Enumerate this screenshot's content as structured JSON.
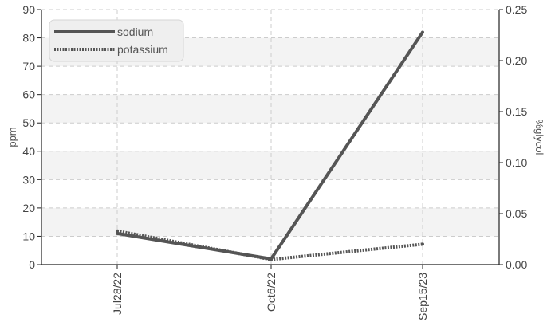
{
  "chart_data": {
    "type": "line",
    "categories": [
      "Jul28/22",
      "Oct6/22",
      "Sep15/23"
    ],
    "series": [
      {
        "name": "sodium",
        "axis": "left",
        "style": "solid",
        "values": [
          11,
          2,
          82
        ]
      },
      {
        "name": "potassium",
        "axis": "right",
        "style": "dotted",
        "values": [
          0.033,
          0.005,
          0.02
        ]
      }
    ],
    "y_left": {
      "label": "ppm",
      "ylim": [
        0,
        90
      ],
      "ticks": [
        0,
        10,
        20,
        30,
        40,
        50,
        60,
        70,
        80,
        90
      ]
    },
    "y_right": {
      "label": "%glycol",
      "ylim": [
        0,
        0.25
      ],
      "ticks": [
        "0.00",
        "0.05",
        "0.10",
        "0.15",
        "0.20",
        "0.25"
      ]
    },
    "grid": true,
    "legend_position": "top-left",
    "colors": {
      "line": "#555555",
      "band": "#f3f3f3",
      "grid": "#cccccc",
      "axis": "#222222",
      "legend_bg": "#efefef"
    }
  }
}
